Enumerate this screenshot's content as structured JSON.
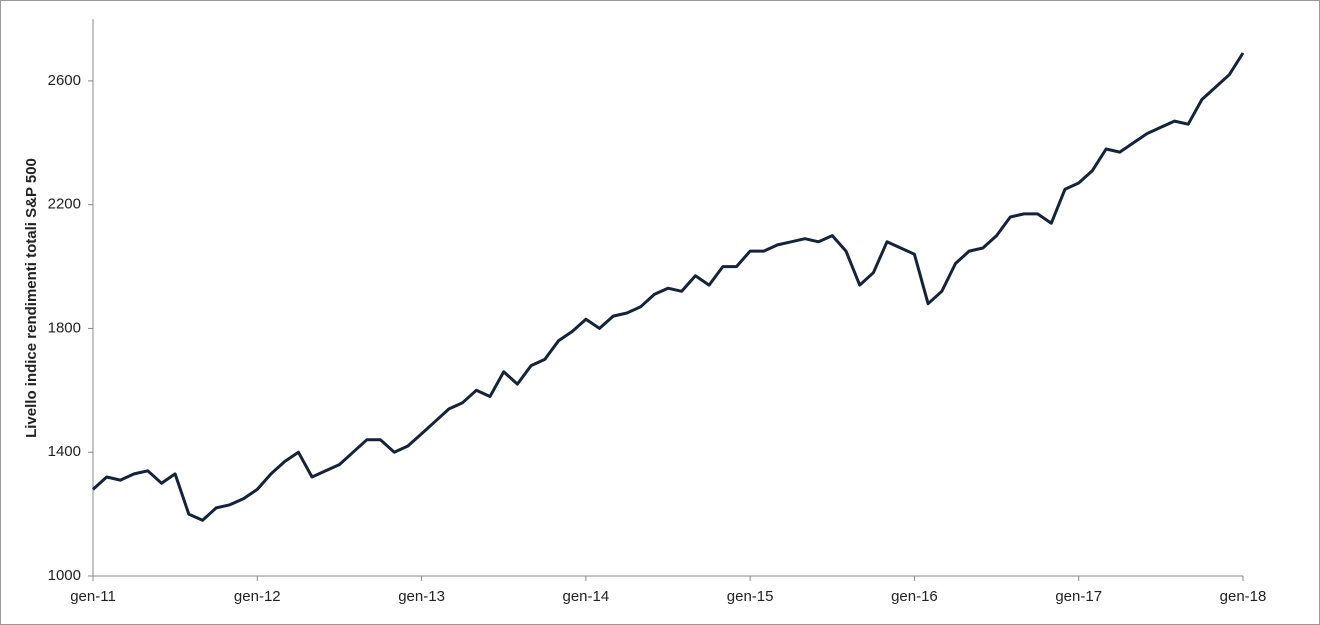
{
  "chart_data": {
    "type": "line",
    "y_label": "Livello indice rendimenti totali S&P 500",
    "categories": [
      "gen-11",
      null,
      null,
      null,
      null,
      null,
      null,
      null,
      null,
      null,
      null,
      null,
      "gen-12",
      null,
      null,
      null,
      null,
      null,
      null,
      null,
      null,
      null,
      null,
      null,
      "gen-13",
      null,
      null,
      null,
      null,
      null,
      null,
      null,
      null,
      null,
      null,
      null,
      "gen-14",
      null,
      null,
      null,
      null,
      null,
      null,
      null,
      null,
      null,
      null,
      null,
      "gen-15",
      null,
      null,
      null,
      null,
      null,
      null,
      null,
      null,
      null,
      null,
      null,
      "gen-16",
      null,
      null,
      null,
      null,
      null,
      null,
      null,
      null,
      null,
      null,
      null,
      "gen-17",
      null,
      null,
      null,
      null,
      null,
      null,
      null,
      null,
      null,
      null,
      null,
      "gen-18"
    ],
    "values": [
      1280,
      1320,
      1310,
      1330,
      1340,
      1300,
      1330,
      1200,
      1180,
      1220,
      1230,
      1250,
      1280,
      1330,
      1370,
      1400,
      1320,
      1340,
      1360,
      1400,
      1440,
      1440,
      1400,
      1420,
      1460,
      1500,
      1540,
      1560,
      1600,
      1580,
      1660,
      1620,
      1680,
      1700,
      1760,
      1790,
      1830,
      1800,
      1840,
      1850,
      1870,
      1910,
      1930,
      1920,
      1970,
      1940,
      2000,
      2000,
      2050,
      2050,
      2070,
      2080,
      2090,
      2080,
      2100,
      2050,
      1940,
      1980,
      2080,
      2060,
      2040,
      1880,
      1920,
      2010,
      2050,
      2060,
      2100,
      2160,
      2170,
      2170,
      2140,
      2250,
      2270,
      2310,
      2380,
      2370,
      2400,
      2430,
      2450,
      2470,
      2460,
      2540,
      2580,
      2620,
      2690
    ],
    "color": "#14233c",
    "ylim": [
      1000,
      2800
    ],
    "yticks": [
      1000,
      1400,
      1800,
      2200,
      2600
    ],
    "grid": false
  }
}
